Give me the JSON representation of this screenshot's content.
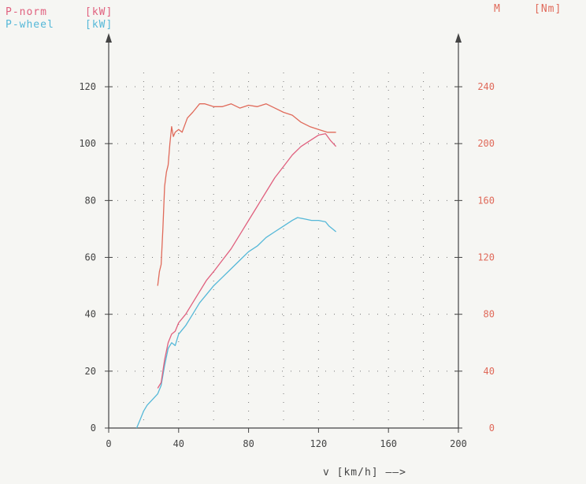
{
  "legend": {
    "pnorm_label": "P-norm",
    "pnorm_unit": "[kW]",
    "pwheel_label": "P-wheel",
    "pwheel_unit": "[kW]",
    "torque_label": "M",
    "torque_unit": "[Nm]"
  },
  "colors": {
    "pnorm": "#e0607e",
    "pwheel": "#55b8d8",
    "torque": "#e06a5a",
    "axis": "#444444",
    "grid": "#777777"
  },
  "chart_data": {
    "type": "line",
    "xlabel": "v [km/h] ——>",
    "xlim": [
      0,
      200
    ],
    "ylim_left": [
      0,
      125
    ],
    "ylim_right": [
      0,
      250
    ],
    "grid": true,
    "x_ticks": [
      "0",
      "40",
      "80",
      "120",
      "160",
      "200"
    ],
    "y_left_ticks": [
      "0",
      "20",
      "40",
      "60",
      "80",
      "100",
      "120"
    ],
    "y_right_ticks": [
      "0",
      "40",
      "80",
      "120",
      "160",
      "200",
      "240"
    ],
    "series": [
      {
        "name": "P-wheel",
        "axis": "left",
        "x": [
          16,
          18,
          20,
          22,
          25,
          28,
          30,
          32,
          34,
          36,
          38,
          40,
          44,
          48,
          52,
          56,
          60,
          65,
          70,
          75,
          80,
          85,
          90,
          95,
          100,
          105,
          108,
          112,
          116,
          120,
          124,
          126,
          128,
          130
        ],
        "y": [
          0,
          3,
          6,
          8,
          10,
          12,
          15,
          22,
          28,
          30,
          29,
          33,
          36,
          40,
          44,
          47,
          50,
          53,
          56,
          59,
          62,
          64,
          67,
          69,
          71,
          73,
          74,
          73.5,
          73,
          73,
          72.5,
          71,
          70,
          69
        ]
      },
      {
        "name": "P-norm",
        "axis": "left",
        "x": [
          28,
          30,
          32,
          34,
          36,
          38,
          40,
          44,
          48,
          52,
          56,
          60,
          65,
          70,
          75,
          80,
          85,
          90,
          95,
          100,
          105,
          110,
          115,
          120,
          124,
          127,
          130
        ],
        "y": [
          14,
          16,
          24,
          30,
          33,
          34,
          37,
          40,
          44,
          48,
          52,
          55,
          59,
          63,
          68,
          73,
          78,
          83,
          88,
          92,
          96,
          99,
          101,
          103,
          103.5,
          101,
          99
        ]
      },
      {
        "name": "M",
        "axis": "right",
        "x": [
          28,
          29,
          30,
          31,
          32,
          33,
          34,
          35,
          36,
          37,
          38,
          40,
          42,
          45,
          48,
          50,
          52,
          55,
          60,
          65,
          70,
          75,
          80,
          85,
          90,
          95,
          100,
          105,
          110,
          115,
          120,
          125,
          130
        ],
        "y": [
          100,
          110,
          115,
          140,
          170,
          180,
          185,
          200,
          212,
          205,
          208,
          210,
          208,
          218,
          222,
          225,
          228,
          228,
          226,
          226,
          228,
          225,
          227,
          226,
          228,
          225,
          222,
          220,
          215,
          212,
          210,
          208,
          208
        ]
      }
    ]
  }
}
